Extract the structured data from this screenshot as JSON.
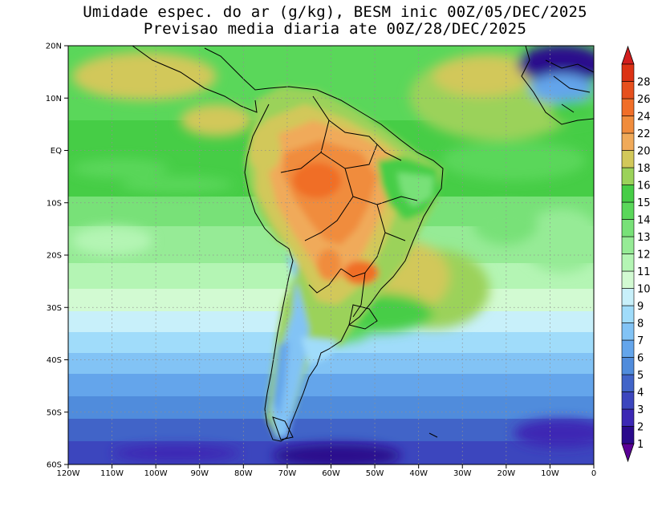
{
  "title_line1": "Umidade espec. do ar (g/kg), BESM inic 00Z/05/DEC/2025",
  "title_line2": "Previsao media diaria ate 00Z/28/DEC/2025",
  "map": {
    "lon_range": [
      -120,
      0
    ],
    "lat_range": [
      -60,
      20
    ],
    "x_ticks": [
      {
        "lon": -120,
        "label": "120W"
      },
      {
        "lon": -110,
        "label": "110W"
      },
      {
        "lon": -100,
        "label": "100W"
      },
      {
        "lon": -90,
        "label": "90W"
      },
      {
        "lon": -80,
        "label": "80W"
      },
      {
        "lon": -70,
        "label": "70W"
      },
      {
        "lon": -60,
        "label": "60W"
      },
      {
        "lon": -50,
        "label": "50W"
      },
      {
        "lon": -40,
        "label": "40W"
      },
      {
        "lon": -30,
        "label": "30W"
      },
      {
        "lon": -20,
        "label": "20W"
      },
      {
        "lon": -10,
        "label": "10W"
      },
      {
        "lon": 0,
        "label": "0"
      }
    ],
    "y_ticks": [
      {
        "lat": 20,
        "label": "20N"
      },
      {
        "lat": 10,
        "label": "10N"
      },
      {
        "lat": 0,
        "label": "EQ"
      },
      {
        "lat": -10,
        "label": "10S"
      },
      {
        "lat": -20,
        "label": "20S"
      },
      {
        "lat": -30,
        "label": "30S"
      },
      {
        "lat": -40,
        "label": "40S"
      },
      {
        "lat": -50,
        "label": "50S"
      },
      {
        "lat": -60,
        "label": "60S"
      }
    ],
    "gridlines": "dotted"
  },
  "colorbar": {
    "levels": [
      "1",
      "2",
      "3",
      "4",
      "5",
      "6",
      "7",
      "8",
      "9",
      "10",
      "11",
      "12",
      "13",
      "14",
      "15",
      "16",
      "18",
      "20",
      "22",
      "24",
      "26",
      "28"
    ],
    "colors": [
      "#2a0a8c",
      "#3c28b4",
      "#3c46be",
      "#4164c8",
      "#508cdc",
      "#64a5eb",
      "#82c3f5",
      "#a0dcfa",
      "#c8f0fa",
      "#d2fad2",
      "#b4f5b4",
      "#96eb96",
      "#78e178",
      "#5ad75a",
      "#46cd46",
      "#9bd25a",
      "#d2c85a",
      "#f0aa5a",
      "#f08c3c",
      "#f06e28",
      "#e6501e",
      "#dc3214"
    ],
    "under_color": "#5a0096",
    "over_color": "#d21e1e"
  }
}
